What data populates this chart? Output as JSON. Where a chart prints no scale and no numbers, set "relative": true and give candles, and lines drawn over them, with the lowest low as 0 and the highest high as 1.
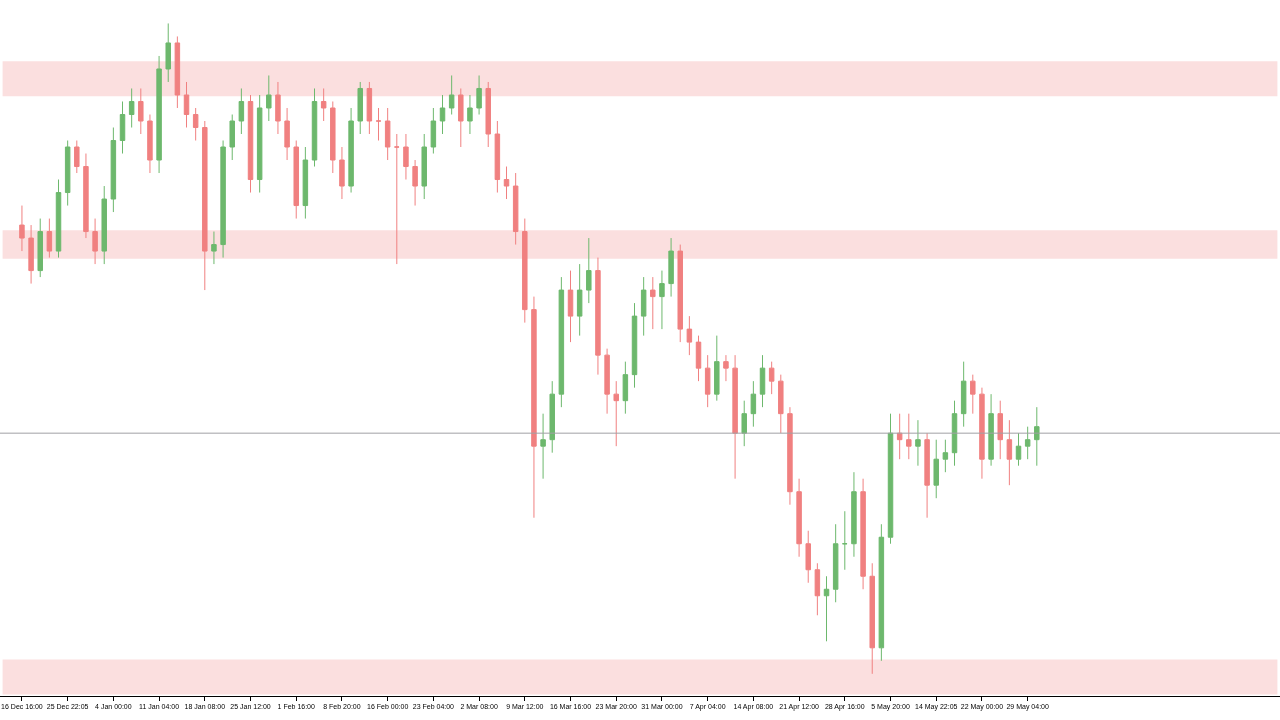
{
  "chart_data": {
    "type": "candlestick",
    "relative": true,
    "tick_labels": "x",
    "grid": false,
    "legend": false,
    "categories": [
      "16 Dec 16:00",
      null,
      null,
      null,
      null,
      "25 Dec 22:05",
      null,
      null,
      null,
      null,
      "4 Jan 00:00",
      null,
      null,
      null,
      null,
      "11 Jan 04:00",
      null,
      null,
      null,
      null,
      "18 Jan 08:00",
      null,
      null,
      null,
      null,
      "25 Jan 12:00",
      null,
      null,
      null,
      null,
      "1 Feb 16:00",
      null,
      null,
      null,
      null,
      "8 Feb 20:00",
      null,
      null,
      null,
      null,
      "16 Feb 00:00",
      null,
      null,
      null,
      null,
      "23 Feb 04:00",
      null,
      null,
      null,
      null,
      "2 Mar 08:00",
      null,
      null,
      null,
      null,
      "9 Mar 12:00",
      null,
      null,
      null,
      null,
      "16 Mar 16:00",
      null,
      null,
      null,
      null,
      "23 Mar 20:00",
      null,
      null,
      null,
      null,
      "31 Mar 00:00",
      null,
      null,
      null,
      null,
      "7 Apr 04:00",
      null,
      null,
      null,
      null,
      "14 Apr 08:00",
      null,
      null,
      null,
      null,
      "21 Apr 12:00",
      null,
      null,
      null,
      null,
      "28 Apr 16:00",
      null,
      null,
      null,
      null,
      "5 May 20:00",
      null,
      null,
      null,
      null,
      "14 May 22:05",
      null,
      null,
      null,
      null,
      "22 May 00:00",
      null,
      null,
      null,
      null,
      "29 May 04:00",
      null
    ],
    "ohlc": [
      [
        0.69,
        0.72,
        0.65,
        0.67
      ],
      [
        0.67,
        0.69,
        0.6,
        0.62
      ],
      [
        0.62,
        0.7,
        0.61,
        0.68
      ],
      [
        0.68,
        0.7,
        0.64,
        0.65
      ],
      [
        0.65,
        0.76,
        0.64,
        0.74
      ],
      [
        0.74,
        0.82,
        0.72,
        0.81
      ],
      [
        0.81,
        0.82,
        0.77,
        0.78
      ],
      [
        0.78,
        0.8,
        0.67,
        0.68
      ],
      [
        0.68,
        0.7,
        0.63,
        0.65
      ],
      [
        0.65,
        0.75,
        0.63,
        0.73
      ],
      [
        0.73,
        0.84,
        0.71,
        0.82
      ],
      [
        0.82,
        0.88,
        0.8,
        0.86
      ],
      [
        0.86,
        0.9,
        0.84,
        0.88
      ],
      [
        0.88,
        0.9,
        0.83,
        0.85
      ],
      [
        0.85,
        0.86,
        0.77,
        0.79
      ],
      [
        0.79,
        0.95,
        0.77,
        0.93
      ],
      [
        0.93,
        1.0,
        0.91,
        0.97
      ],
      [
        0.97,
        0.98,
        0.87,
        0.89
      ],
      [
        0.89,
        0.91,
        0.84,
        0.86
      ],
      [
        0.86,
        0.87,
        0.82,
        0.84
      ],
      [
        0.84,
        0.85,
        0.59,
        0.65
      ],
      [
        0.65,
        0.68,
        0.63,
        0.66
      ],
      [
        0.66,
        0.82,
        0.64,
        0.81
      ],
      [
        0.81,
        0.86,
        0.79,
        0.85
      ],
      [
        0.85,
        0.9,
        0.83,
        0.88
      ],
      [
        0.88,
        0.89,
        0.74,
        0.76
      ],
      [
        0.76,
        0.89,
        0.74,
        0.87
      ],
      [
        0.87,
        0.92,
        0.85,
        0.89
      ],
      [
        0.89,
        0.91,
        0.83,
        0.85
      ],
      [
        0.85,
        0.87,
        0.79,
        0.81
      ],
      [
        0.81,
        0.82,
        0.7,
        0.72
      ],
      [
        0.72,
        0.81,
        0.7,
        0.79
      ],
      [
        0.79,
        0.9,
        0.78,
        0.88
      ],
      [
        0.88,
        0.9,
        0.85,
        0.87
      ],
      [
        0.87,
        0.88,
        0.77,
        0.79
      ],
      [
        0.79,
        0.81,
        0.73,
        0.75
      ],
      [
        0.75,
        0.87,
        0.74,
        0.85
      ],
      [
        0.85,
        0.91,
        0.83,
        0.9
      ],
      [
        0.9,
        0.91,
        0.83,
        0.85
      ],
      [
        0.85,
        0.87,
        0.82,
        0.85
      ],
      [
        0.85,
        0.87,
        0.79,
        0.81
      ],
      [
        0.81,
        0.83,
        0.63,
        0.81
      ],
      [
        0.81,
        0.83,
        0.76,
        0.78
      ],
      [
        0.78,
        0.79,
        0.72,
        0.75
      ],
      [
        0.75,
        0.83,
        0.73,
        0.81
      ],
      [
        0.81,
        0.87,
        0.8,
        0.85
      ],
      [
        0.85,
        0.89,
        0.83,
        0.87
      ],
      [
        0.87,
        0.92,
        0.86,
        0.89
      ],
      [
        0.89,
        0.9,
        0.81,
        0.85
      ],
      [
        0.85,
        0.89,
        0.83,
        0.87
      ],
      [
        0.87,
        0.92,
        0.86,
        0.9
      ],
      [
        0.9,
        0.91,
        0.81,
        0.83
      ],
      [
        0.83,
        0.85,
        0.74,
        0.76
      ],
      [
        0.76,
        0.78,
        0.73,
        0.75
      ],
      [
        0.75,
        0.77,
        0.66,
        0.68
      ],
      [
        0.68,
        0.7,
        0.54,
        0.56
      ],
      [
        0.56,
        0.58,
        0.24,
        0.35
      ],
      [
        0.35,
        0.4,
        0.3,
        0.36
      ],
      [
        0.36,
        0.45,
        0.34,
        0.43
      ],
      [
        0.43,
        0.61,
        0.41,
        0.59
      ],
      [
        0.59,
        0.62,
        0.51,
        0.55
      ],
      [
        0.55,
        0.63,
        0.52,
        0.59
      ],
      [
        0.59,
        0.67,
        0.57,
        0.62
      ],
      [
        0.62,
        0.64,
        0.46,
        0.49
      ],
      [
        0.49,
        0.5,
        0.4,
        0.43
      ],
      [
        0.43,
        0.45,
        0.35,
        0.42
      ],
      [
        0.42,
        0.48,
        0.4,
        0.46
      ],
      [
        0.46,
        0.57,
        0.44,
        0.55
      ],
      [
        0.55,
        0.61,
        0.52,
        0.59
      ],
      [
        0.59,
        0.61,
        0.53,
        0.58
      ],
      [
        0.58,
        0.62,
        0.53,
        0.6
      ],
      [
        0.6,
        0.67,
        0.58,
        0.65
      ],
      [
        0.65,
        0.66,
        0.51,
        0.53
      ],
      [
        0.53,
        0.55,
        0.49,
        0.51
      ],
      [
        0.51,
        0.52,
        0.45,
        0.47
      ],
      [
        0.47,
        0.49,
        0.41,
        0.43
      ],
      [
        0.43,
        0.52,
        0.42,
        0.48
      ],
      [
        0.48,
        0.49,
        0.45,
        0.47
      ],
      [
        0.47,
        0.49,
        0.3,
        0.37
      ],
      [
        0.37,
        0.42,
        0.35,
        0.4
      ],
      [
        0.4,
        0.45,
        0.38,
        0.43
      ],
      [
        0.43,
        0.49,
        0.41,
        0.47
      ],
      [
        0.47,
        0.48,
        0.43,
        0.45
      ],
      [
        0.45,
        0.46,
        0.37,
        0.4
      ],
      [
        0.4,
        0.41,
        0.26,
        0.28
      ],
      [
        0.28,
        0.3,
        0.18,
        0.2
      ],
      [
        0.2,
        0.22,
        0.14,
        0.16
      ],
      [
        0.16,
        0.17,
        0.09,
        0.12
      ],
      [
        0.12,
        0.15,
        0.05,
        0.13
      ],
      [
        0.13,
        0.23,
        0.11,
        0.2
      ],
      [
        0.2,
        0.25,
        0.16,
        0.2
      ],
      [
        0.2,
        0.31,
        0.18,
        0.28
      ],
      [
        0.28,
        0.3,
        0.13,
        0.15
      ],
      [
        0.15,
        0.17,
        0.0,
        0.04
      ],
      [
        0.04,
        0.23,
        0.02,
        0.21
      ],
      [
        0.21,
        0.4,
        0.2,
        0.37
      ],
      [
        0.37,
        0.4,
        0.33,
        0.36
      ],
      [
        0.36,
        0.4,
        0.33,
        0.35
      ],
      [
        0.35,
        0.39,
        0.32,
        0.36
      ],
      [
        0.36,
        0.37,
        0.24,
        0.29
      ],
      [
        0.29,
        0.36,
        0.27,
        0.33
      ],
      [
        0.33,
        0.36,
        0.31,
        0.34
      ],
      [
        0.34,
        0.42,
        0.32,
        0.4
      ],
      [
        0.4,
        0.48,
        0.38,
        0.45
      ],
      [
        0.45,
        0.46,
        0.4,
        0.43
      ],
      [
        0.43,
        0.44,
        0.3,
        0.33
      ],
      [
        0.33,
        0.43,
        0.32,
        0.4
      ],
      [
        0.4,
        0.42,
        0.33,
        0.36
      ],
      [
        0.36,
        0.39,
        0.29,
        0.33
      ],
      [
        0.33,
        0.37,
        0.32,
        0.35
      ],
      [
        0.35,
        0.38,
        0.33,
        0.36
      ],
      [
        0.36,
        0.41,
        0.32,
        0.38
      ]
    ],
    "ref_lines": [
      {
        "axis": "y",
        "value": 0.37,
        "color": "#a0a0a4"
      }
    ],
    "bands": [
      {
        "axis": "y",
        "from": 0.89,
        "to": 0.94,
        "color": "#e60000"
      },
      {
        "axis": "y",
        "from": 0.64,
        "to": 0.68,
        "color": "#e60000"
      },
      {
        "axis": "y",
        "from": -0.03,
        "to": 0.02,
        "color": "#e60000"
      }
    ]
  }
}
